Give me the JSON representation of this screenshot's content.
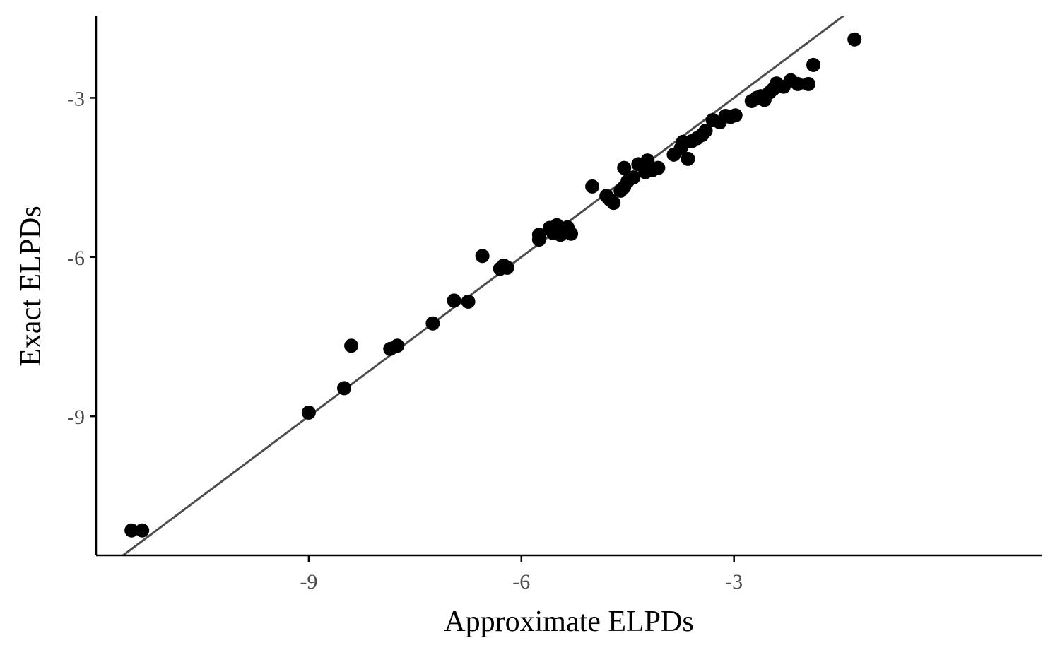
{
  "chart_data": {
    "type": "scatter",
    "xlabel": "Approximate ELPDs",
    "ylabel": "Exact ELPDs",
    "xlim": [
      -12.0,
      1.35
    ],
    "ylim": [
      -11.62,
      -1.45
    ],
    "x_ticks": [
      {
        "value": -9,
        "label": "-9"
      },
      {
        "value": -6,
        "label": "-6"
      },
      {
        "value": -3,
        "label": "-3"
      }
    ],
    "y_ticks": [
      {
        "value": -3,
        "label": "-3"
      },
      {
        "value": -6,
        "label": "-6"
      },
      {
        "value": -9,
        "label": "-9"
      }
    ],
    "reference_line": {
      "type": "identity",
      "from": -11.7,
      "to": 1.4
    },
    "grid": false,
    "point_color": "#000000",
    "line_color": "#4d4d4d",
    "points": [
      {
        "x": -11.5,
        "y": -11.15
      },
      {
        "x": -11.35,
        "y": -11.15
      },
      {
        "x": -9.0,
        "y": -8.93
      },
      {
        "x": -8.5,
        "y": -8.47
      },
      {
        "x": -8.4,
        "y": -7.67
      },
      {
        "x": -7.85,
        "y": -7.73
      },
      {
        "x": -7.75,
        "y": -7.67
      },
      {
        "x": -7.25,
        "y": -7.25
      },
      {
        "x": -6.95,
        "y": -6.82
      },
      {
        "x": -6.75,
        "y": -6.84
      },
      {
        "x": -6.55,
        "y": -5.98
      },
      {
        "x": -6.3,
        "y": -6.22
      },
      {
        "x": -6.25,
        "y": -6.16
      },
      {
        "x": -6.2,
        "y": -6.2
      },
      {
        "x": -5.75,
        "y": -5.58
      },
      {
        "x": -5.75,
        "y": -5.67
      },
      {
        "x": -5.6,
        "y": -5.45
      },
      {
        "x": -5.55,
        "y": -5.55
      },
      {
        "x": -5.5,
        "y": -5.4
      },
      {
        "x": -5.45,
        "y": -5.58
      },
      {
        "x": -5.4,
        "y": -5.48
      },
      {
        "x": -5.35,
        "y": -5.44
      },
      {
        "x": -5.3,
        "y": -5.56
      },
      {
        "x": -5.0,
        "y": -4.67
      },
      {
        "x": -4.8,
        "y": -4.85
      },
      {
        "x": -4.75,
        "y": -4.92
      },
      {
        "x": -4.7,
        "y": -4.98
      },
      {
        "x": -4.6,
        "y": -4.75
      },
      {
        "x": -4.55,
        "y": -4.68
      },
      {
        "x": -4.5,
        "y": -4.57
      },
      {
        "x": -4.55,
        "y": -4.32
      },
      {
        "x": -4.42,
        "y": -4.5
      },
      {
        "x": -4.35,
        "y": -4.25
      },
      {
        "x": -4.25,
        "y": -4.4
      },
      {
        "x": -4.22,
        "y": -4.18
      },
      {
        "x": -4.15,
        "y": -4.36
      },
      {
        "x": -4.07,
        "y": -4.32
      },
      {
        "x": -3.85,
        "y": -4.07
      },
      {
        "x": -3.75,
        "y": -3.95
      },
      {
        "x": -3.72,
        "y": -3.83
      },
      {
        "x": -3.65,
        "y": -4.15
      },
      {
        "x": -3.6,
        "y": -3.82
      },
      {
        "x": -3.52,
        "y": -3.76
      },
      {
        "x": -3.45,
        "y": -3.7
      },
      {
        "x": -3.4,
        "y": -3.62
      },
      {
        "x": -3.3,
        "y": -3.42
      },
      {
        "x": -3.2,
        "y": -3.46
      },
      {
        "x": -3.12,
        "y": -3.34
      },
      {
        "x": -3.05,
        "y": -3.36
      },
      {
        "x": -2.98,
        "y": -3.33
      },
      {
        "x": -2.75,
        "y": -3.06
      },
      {
        "x": -2.68,
        "y": -3.0
      },
      {
        "x": -2.62,
        "y": -2.97
      },
      {
        "x": -2.57,
        "y": -3.04
      },
      {
        "x": -2.5,
        "y": -2.9
      },
      {
        "x": -2.45,
        "y": -2.84
      },
      {
        "x": -2.4,
        "y": -2.73
      },
      {
        "x": -2.3,
        "y": -2.79
      },
      {
        "x": -2.2,
        "y": -2.67
      },
      {
        "x": -2.1,
        "y": -2.74
      },
      {
        "x": -1.95,
        "y": -2.74
      },
      {
        "x": -1.88,
        "y": -2.38
      },
      {
        "x": -1.3,
        "y": -1.9
      }
    ]
  }
}
